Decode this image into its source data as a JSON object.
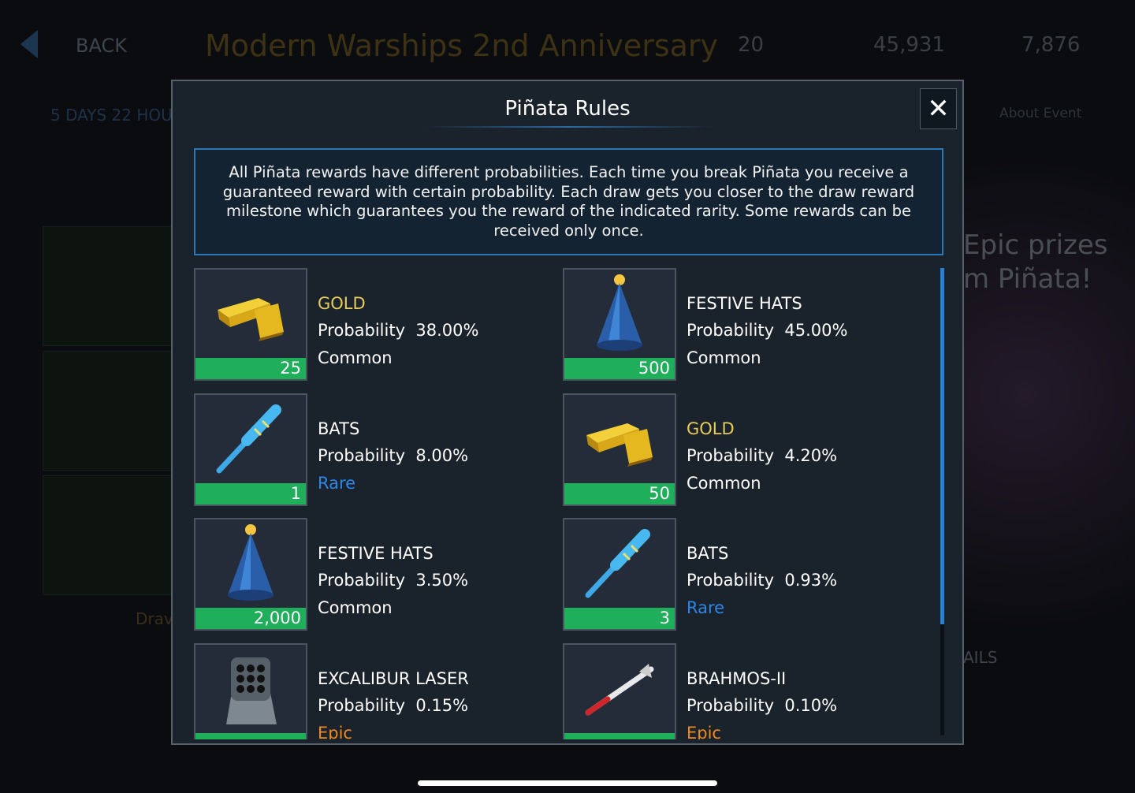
{
  "background": {
    "back_label": "BACK",
    "event_title": "Modern Warships 2nd Anniversary",
    "bats_count": "20",
    "gold_count": "45,931",
    "hats_count": "7,876",
    "timer": "5 DAYS 22 HOU",
    "about_tab": "About Event",
    "promo_line1": "Epic prizes",
    "promo_line2": "m Piñata!",
    "draw_label": "Drav",
    "details_label": "AILS"
  },
  "modal": {
    "title": "Piñata Rules",
    "close_icon": "close-icon",
    "description": "All Piñata rewards have different probabilities. Each time you break Piñata you receive a guaranteed reward with certain probability. Each draw gets you closer to the draw reward milestone which guarantees you the reward of the indicated rarity. Some rewards can be received only once.",
    "probability_label": "Probability",
    "rarity_colors": {
      "Common": "#ffffff",
      "Rare": "#2f86e6",
      "Epic": "#f08a1e"
    },
    "name_colors": {
      "gold": "#e8cc5a",
      "default": "#ffffff"
    },
    "rewards": [
      {
        "name": "GOLD",
        "icon": "gold-bars-icon",
        "qty": "25",
        "probability": "38.00%",
        "rarity": "Common"
      },
      {
        "name": "FESTIVE HATS",
        "icon": "party-hat-icon",
        "qty": "500",
        "probability": "45.00%",
        "rarity": "Common"
      },
      {
        "name": "BATS",
        "icon": "bat-icon",
        "qty": "1",
        "probability": "8.00%",
        "rarity": "Rare"
      },
      {
        "name": "GOLD",
        "icon": "gold-bars-icon",
        "qty": "50",
        "probability": "4.20%",
        "rarity": "Common"
      },
      {
        "name": "FESTIVE HATS",
        "icon": "party-hat-icon",
        "qty": "2,000",
        "probability": "3.50%",
        "rarity": "Common"
      },
      {
        "name": "BATS",
        "icon": "bat-icon",
        "qty": "3",
        "probability": "0.93%",
        "rarity": "Rare"
      },
      {
        "name": "EXCALIBUR LASER",
        "icon": "laser-turret-icon",
        "qty": "",
        "probability": "0.15%",
        "rarity": "Epic"
      },
      {
        "name": "BRAHMOS-II",
        "icon": "missile-icon",
        "qty": "",
        "probability": "0.10%",
        "rarity": "Epic"
      }
    ]
  }
}
